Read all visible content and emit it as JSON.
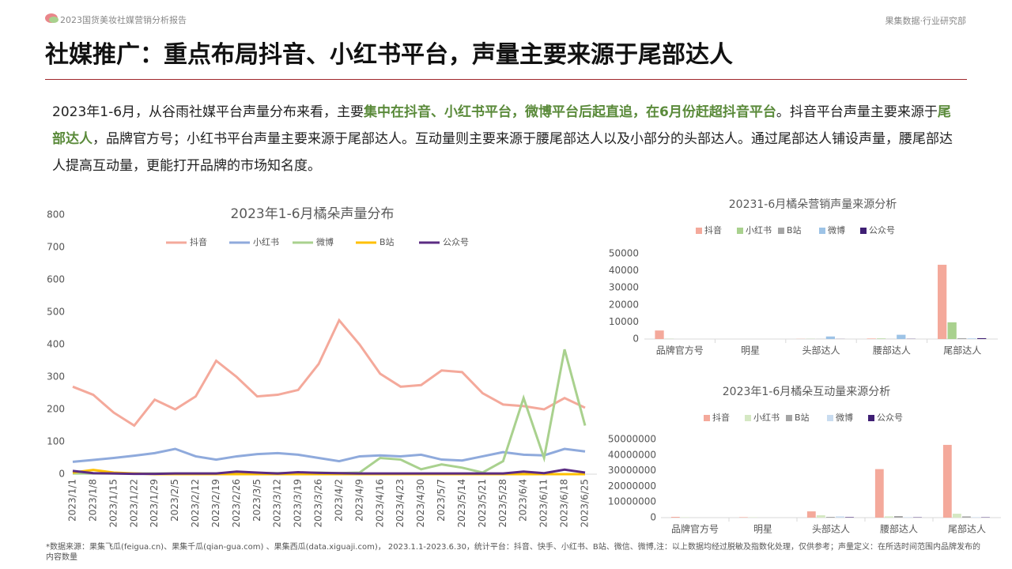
{
  "header": {
    "report": "2023国货美妆社媒营销分析报告",
    "org": "果集数据·行业研究部",
    "title": "社媒推广：重点布局抖音、小红书平台，声量主要来源于尾部达人"
  },
  "paragraph": [
    "2023年1-6月，从谷雨社媒平台声量分布来看，主要",
    "集中在抖音、小红书平台，微博平台后起直追，在6月份赶超抖音平台",
    "。抖音平台声量主要来源于",
    "尾部达人",
    "，品牌官方号；小红书平台声量主要来源于尾部达人。互动量则主要来源于腰尾部达人以及小部分的头部达人。通过尾部达人铺设声量，腰尾部达人提高互动量，更能打开品牌的市场知名度。"
  ],
  "footnote": "*数据来源：果集飞瓜(feigua.cn)、果集千瓜(qian-gua.com) 、果集西瓜(data.xiguaji.com)， 2023.1.1-2023.6.30，统计平台：抖音、快手、小红书、B站、微信、微博,注：以上数据均经过脱敏及指数化处理，仅供参考；声量定义：在所选时间范围内品牌发布的内容数量",
  "chart_data": [
    {
      "type": "line",
      "title": "2023年1-6月橘朵声量分布",
      "categories": [
        "2023/1/1",
        "2023/1/8",
        "2023/1/15",
        "2023/1/22",
        "2023/1/29",
        "2023/2/5",
        "2023/2/12",
        "2023/2/19",
        "2023/2/26",
        "2023/3/5",
        "2023/3/12",
        "2023/3/19",
        "2023/3/26",
        "2023/4/2",
        "2023/4/9",
        "2023/4/16",
        "2023/4/23",
        "2023/4/30",
        "2023/5/7",
        "2023/5/14",
        "2023/5/21",
        "2023/5/28",
        "2023/6/4",
        "2023/6/11",
        "2023/6/18",
        "2023/6/25"
      ],
      "series": [
        {
          "name": "抖音",
          "color": "#f4a99b",
          "values": [
            270,
            245,
            190,
            150,
            230,
            200,
            240,
            350,
            300,
            240,
            245,
            260,
            340,
            475,
            400,
            310,
            270,
            275,
            320,
            315,
            250,
            215,
            210,
            200,
            235,
            205
          ]
        },
        {
          "name": "小红书",
          "color": "#8faadc",
          "values": [
            38,
            44,
            50,
            57,
            65,
            78,
            55,
            45,
            55,
            62,
            65,
            60,
            50,
            40,
            55,
            58,
            55,
            60,
            45,
            42,
            55,
            68,
            60,
            58,
            78,
            70
          ]
        },
        {
          "name": "微博",
          "color": "#a9d18e",
          "values": [
            2,
            2,
            2,
            2,
            2,
            2,
            2,
            2,
            3,
            3,
            3,
            4,
            5,
            3,
            5,
            50,
            45,
            15,
            30,
            20,
            5,
            40,
            235,
            50,
            385,
            150
          ]
        },
        {
          "name": "B站",
          "color": "#ffc000",
          "values": [
            5,
            13,
            5,
            2,
            0,
            0,
            0,
            0,
            0,
            0,
            0,
            0,
            0,
            0,
            0,
            0,
            0,
            0,
            0,
            0,
            0,
            0,
            0,
            0,
            0,
            0
          ]
        },
        {
          "name": "公众号",
          "color": "#5b2c83",
          "values": [
            10,
            3,
            2,
            1,
            1,
            2,
            2,
            2,
            8,
            5,
            2,
            6,
            4,
            3,
            2,
            2,
            2,
            2,
            2,
            2,
            2,
            2,
            8,
            3,
            14,
            5
          ]
        }
      ],
      "ylim": [
        0,
        800
      ],
      "yticks": [
        0,
        100,
        200,
        300,
        400,
        500,
        600,
        700,
        800
      ]
    },
    {
      "type": "bar",
      "title": "20231-6月橘朵营销声量来源分析",
      "categories": [
        "品牌官方号",
        "明星",
        "头部达人",
        "腰部达人",
        "尾部达人"
      ],
      "series": [
        {
          "name": "抖音",
          "color": "#f4a99b",
          "values": [
            5000,
            0,
            100,
            300,
            43500
          ]
        },
        {
          "name": "小红书",
          "color": "#a9d18e",
          "values": [
            100,
            0,
            100,
            300,
            9800
          ]
        },
        {
          "name": "B站",
          "color": "#a5a5a5",
          "values": [
            0,
            0,
            50,
            50,
            500
          ]
        },
        {
          "name": "微博",
          "color": "#9dc3e6",
          "values": [
            0,
            0,
            1500,
            2500,
            300
          ]
        },
        {
          "name": "公众号",
          "color": "#3f1f74",
          "values": [
            0,
            0,
            50,
            100,
            500
          ]
        }
      ],
      "ylim": [
        0,
        50000
      ],
      "yticks": [
        0,
        10000,
        20000,
        30000,
        40000,
        50000
      ]
    },
    {
      "type": "bar",
      "title": "2023年1-6月橘朵互动量来源分析",
      "categories": [
        "品牌官方号",
        "明星",
        "头部达人",
        "腰部达人",
        "尾部达人"
      ],
      "series": [
        {
          "name": "抖音",
          "color": "#f4a99b",
          "values": [
            500000,
            300000,
            4000000,
            31000000,
            46500000
          ]
        },
        {
          "name": "小红书",
          "color": "#d5e8c3",
          "values": [
            200000,
            200000,
            1500000,
            800000,
            2500000
          ]
        },
        {
          "name": "B站",
          "color": "#a5a5a5",
          "values": [
            0,
            0,
            500000,
            1000000,
            800000
          ]
        },
        {
          "name": "微博",
          "color": "#c9dcf0",
          "values": [
            0,
            0,
            800000,
            300000,
            300000
          ]
        },
        {
          "name": "公众号",
          "color": "#3f1f74",
          "values": [
            0,
            0,
            300000,
            200000,
            200000
          ]
        }
      ],
      "ylim": [
        0,
        50000000
      ],
      "yticks": [
        0,
        10000000,
        20000000,
        30000000,
        40000000,
        50000000
      ]
    }
  ]
}
